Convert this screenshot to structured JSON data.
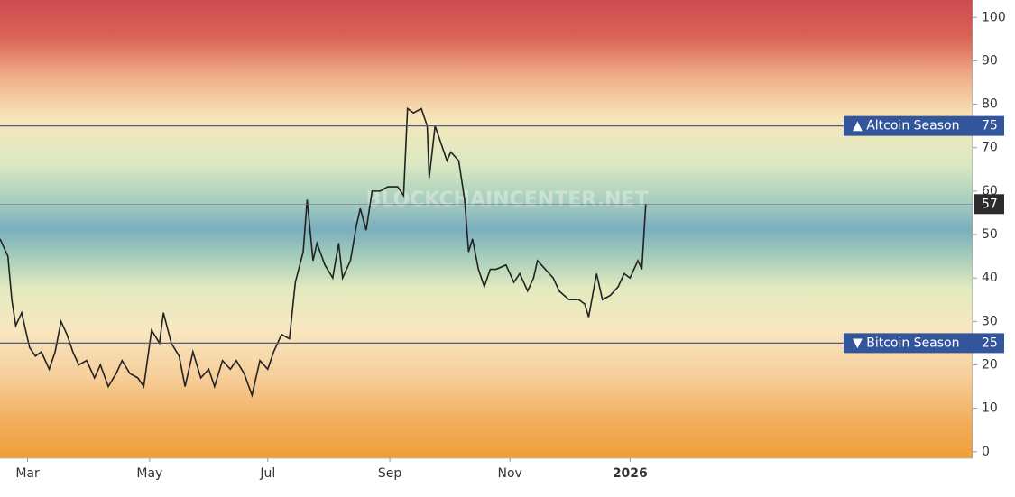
{
  "chart_data": {
    "type": "line",
    "watermark": "BLOCKCHAINCENTER.NET",
    "x": [
      0,
      4,
      6,
      8,
      11,
      15,
      18,
      21,
      25,
      28,
      31,
      34,
      37,
      40,
      44,
      48,
      51,
      55,
      59,
      62,
      66,
      70,
      73,
      77,
      81,
      83,
      87,
      91,
      94,
      98,
      102,
      106,
      109,
      113,
      117,
      120,
      124,
      128,
      132,
      136,
      139,
      143,
      147,
      150,
      154,
      156,
      159,
      161,
      165,
      169,
      172,
      174,
      178,
      181,
      183,
      186,
      189,
      193,
      197,
      202,
      205,
      207,
      210,
      214,
      217,
      218,
      221,
      224,
      227,
      229,
      233,
      236,
      238,
      240,
      243,
      246,
      249,
      252,
      257,
      261,
      264,
      268,
      271,
      273,
      277,
      281,
      284,
      289,
      294,
      297,
      299,
      303,
      306,
      310,
      314,
      317,
      320,
      324,
      326,
      328
    ],
    "values": [
      49,
      45,
      35,
      29,
      32,
      24,
      22,
      23,
      19,
      23,
      30,
      27,
      23,
      20,
      21,
      17,
      20,
      15,
      18,
      21,
      18,
      17,
      15,
      28,
      25,
      32,
      25,
      22,
      15,
      23,
      17,
      19,
      15,
      21,
      19,
      21,
      18,
      13,
      21,
      19,
      23,
      27,
      26,
      39,
      46,
      58,
      44,
      48,
      43,
      40,
      48,
      40,
      44,
      52,
      56,
      51,
      60,
      60,
      61,
      61,
      59,
      79,
      78,
      79,
      75,
      63,
      75,
      71,
      67,
      69,
      67,
      58,
      46,
      49,
      42,
      38,
      42,
      42,
      43,
      39,
      41,
      37,
      40,
      44,
      42,
      40,
      37,
      35,
      35,
      34,
      31,
      41,
      35,
      36,
      38,
      41,
      40,
      44,
      42,
      57
    ],
    "color": "#222222",
    "xlim": [
      0,
      494
    ],
    "xticks": [
      {
        "value": 14,
        "label": "Mar"
      },
      {
        "value": 76,
        "label": "May"
      },
      {
        "value": 136,
        "label": "Jul"
      },
      {
        "value": 198,
        "label": "Sep"
      },
      {
        "value": 259,
        "label": "Nov"
      },
      {
        "value": 320,
        "label": "2026"
      }
    ],
    "ylim": [
      -1.5,
      104
    ],
    "yticks": [
      0,
      10,
      20,
      30,
      40,
      50,
      60,
      70,
      80,
      90,
      100
    ],
    "thresholds": [
      {
        "label": "▲ Altcoin Season",
        "value": 75
      },
      {
        "label": "▼ Bitcoin Season",
        "value": 25
      }
    ]
  }
}
